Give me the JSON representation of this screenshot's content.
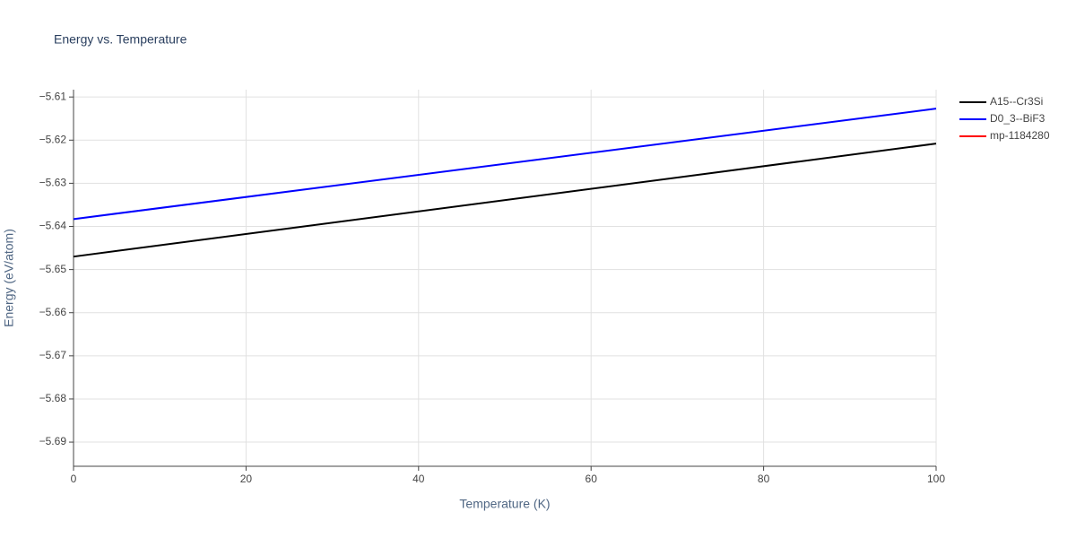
{
  "chart_data": {
    "type": "line",
    "title": "Energy vs. Temperature",
    "x_label": "Temperature (K)",
    "y_label": "Energy (eV/atom)",
    "x": [
      0,
      100
    ],
    "series": [
      {
        "name": "A15--Cr3Si",
        "color": "#000000",
        "values": [
          -5.647,
          -5.6208
        ]
      },
      {
        "name": "D0_3--BiF3",
        "color": "#0000ff",
        "values": [
          -5.6383,
          -5.6127
        ]
      },
      {
        "name": "mp-1184280",
        "color": "#ff0000",
        "values": [
          null,
          null
        ]
      }
    ],
    "xlim": [
      0,
      100
    ],
    "xticks": [
      0,
      20,
      40,
      60,
      80,
      100
    ],
    "ylim": [
      -5.6956,
      -5.6083
    ],
    "yticks": [
      {
        "value": -5.69,
        "label": "−5.69"
      },
      {
        "value": -5.68,
        "label": "−5.68"
      },
      {
        "value": -5.67,
        "label": "−5.67"
      },
      {
        "value": -5.66,
        "label": "−5.66"
      },
      {
        "value": -5.65,
        "label": "−5.65"
      },
      {
        "value": -5.64,
        "label": "−5.64"
      },
      {
        "value": -5.63,
        "label": "−5.63"
      },
      {
        "value": -5.62,
        "label": "−5.62"
      },
      {
        "value": -5.61,
        "label": "−5.61"
      }
    ],
    "grid": true,
    "legend": "right"
  }
}
